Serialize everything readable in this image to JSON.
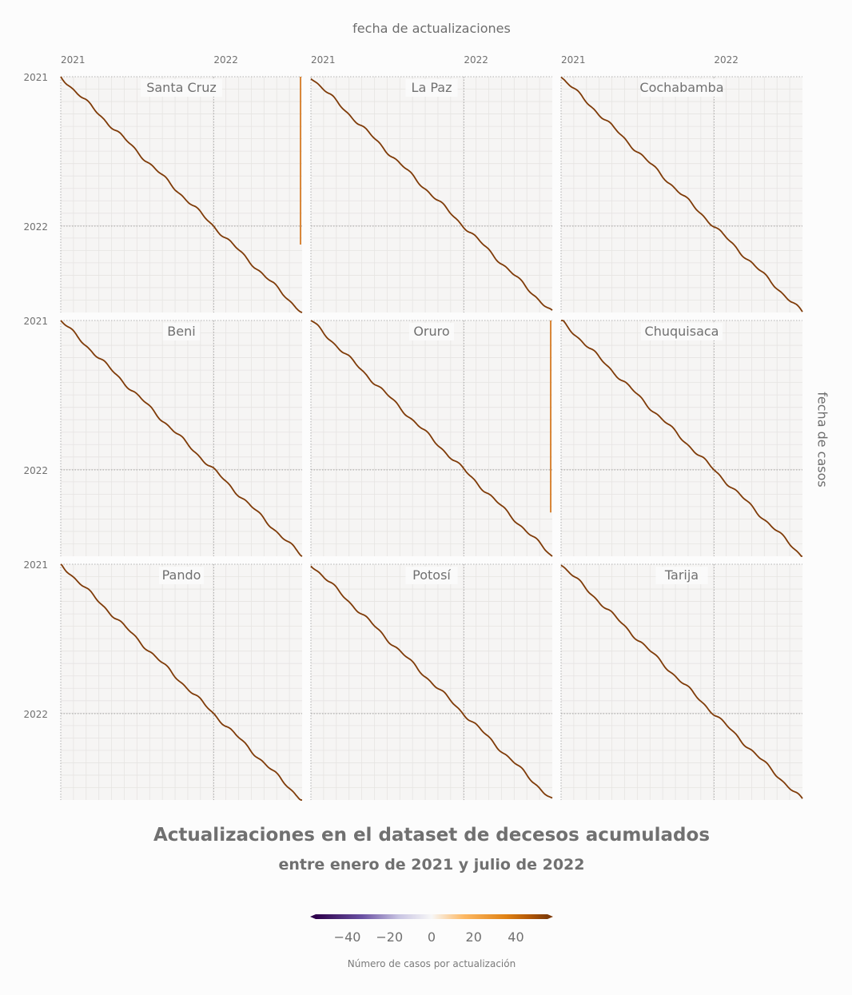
{
  "chart_data": {
    "type": "heatmap",
    "title": "Actualizaciones en el dataset de decesos acumulados",
    "subtitle": "entre enero de 2021 y julio de 2022",
    "xlabel": "fecha de actualizaciones",
    "ylabel": "fecha de casos",
    "x_tick_labels": [
      "2021",
      "2022"
    ],
    "y_tick_labels": [
      "2021",
      "2022"
    ],
    "xlim": [
      "2021-01-01",
      "2022-07-31"
    ],
    "ylim": [
      "2021-01-01",
      "2022-07-31"
    ],
    "grid": true,
    "colorbar": {
      "title": "Número de casos por actualización",
      "ticks": [
        "−40",
        "−20",
        "0",
        "20",
        "40"
      ],
      "tick_values": [
        -40,
        -20,
        0,
        20,
        40
      ],
      "range": [
        -55,
        55
      ],
      "colors": [
        "#2d004b",
        "#8073ac",
        "#f7f7f7",
        "#fdb863",
        "#b35806",
        "#7f3b08"
      ],
      "placement": "bottom"
    },
    "panels": [
      {
        "name": "Santa Cruz",
        "extra_update": {
          "update_date": "2022-07-31",
          "case_from": "2021-01-01",
          "case_to": "2022-02-15"
        }
      },
      {
        "name": "La Paz"
      },
      {
        "name": "Cochabamba"
      },
      {
        "name": "Beni"
      },
      {
        "name": "Oruro",
        "extra_update": {
          "update_date": "2022-07-31",
          "case_from": "2021-01-01",
          "case_to": "2022-04-15"
        }
      },
      {
        "name": "Chuquisaca"
      },
      {
        "name": "Pando"
      },
      {
        "name": "Potosí"
      },
      {
        "name": "Tarija"
      }
    ],
    "diagonal": {
      "description_values": "each update date adds cases for the same case date",
      "from": "2021-01-01",
      "to": "2022-07-31"
    }
  }
}
